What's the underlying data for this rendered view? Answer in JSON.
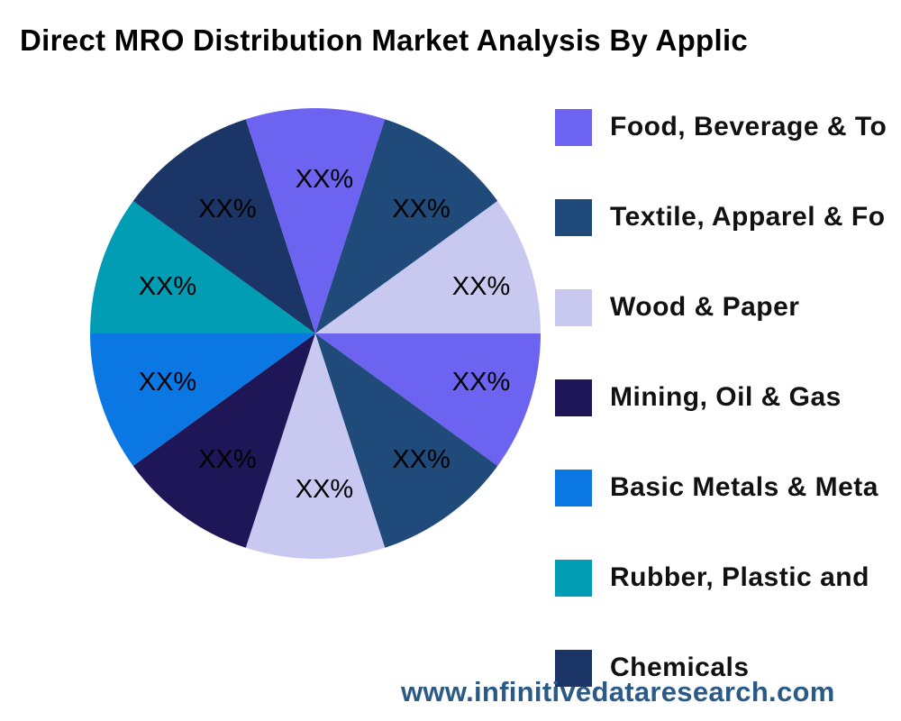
{
  "chart_data": {
    "type": "pie",
    "title": "Direct MRO Distribution  Market Analysis By Applic",
    "legend_placement": "right",
    "legend": [
      {
        "label": "Food, Beverage & To",
        "color": "#6C63F0"
      },
      {
        "label": "Textile, Apparel & Fo",
        "color": "#1F4A7A"
      },
      {
        "label": "Wood & Paper",
        "color": "#C8C8F0"
      },
      {
        "label": "Mining, Oil & Gas",
        "color": "#1E1656"
      },
      {
        "label": "Basic Metals & Meta",
        "color": "#0B77E3"
      },
      {
        "label": "Rubber, Plastic and",
        "color": "#009DB5"
      },
      {
        "label": "Chemicals",
        "color": "#1B3566"
      }
    ],
    "slices": [
      {
        "value": 10,
        "label": "XX%",
        "color": "#6C63F0"
      },
      {
        "value": 10,
        "label": "XX%",
        "color": "#1F4A7A"
      },
      {
        "value": 10,
        "label": "XX%",
        "color": "#C8C8F0"
      },
      {
        "value": 10,
        "label": "XX%",
        "color": "#1E1656"
      },
      {
        "value": 10,
        "label": "XX%",
        "color": "#0B77E3"
      },
      {
        "value": 10,
        "label": "XX%",
        "color": "#009DB5"
      },
      {
        "value": 10,
        "label": "XX%",
        "color": "#1B3566"
      },
      {
        "value": 10,
        "label": "XX%",
        "color": "#6C63F0"
      },
      {
        "value": 10,
        "label": "XX%",
        "color": "#1F4A7A"
      },
      {
        "value": 10,
        "label": "XX%",
        "color": "#C8C8F0"
      }
    ]
  },
  "watermark": "www.infinitivedataresearch.com"
}
